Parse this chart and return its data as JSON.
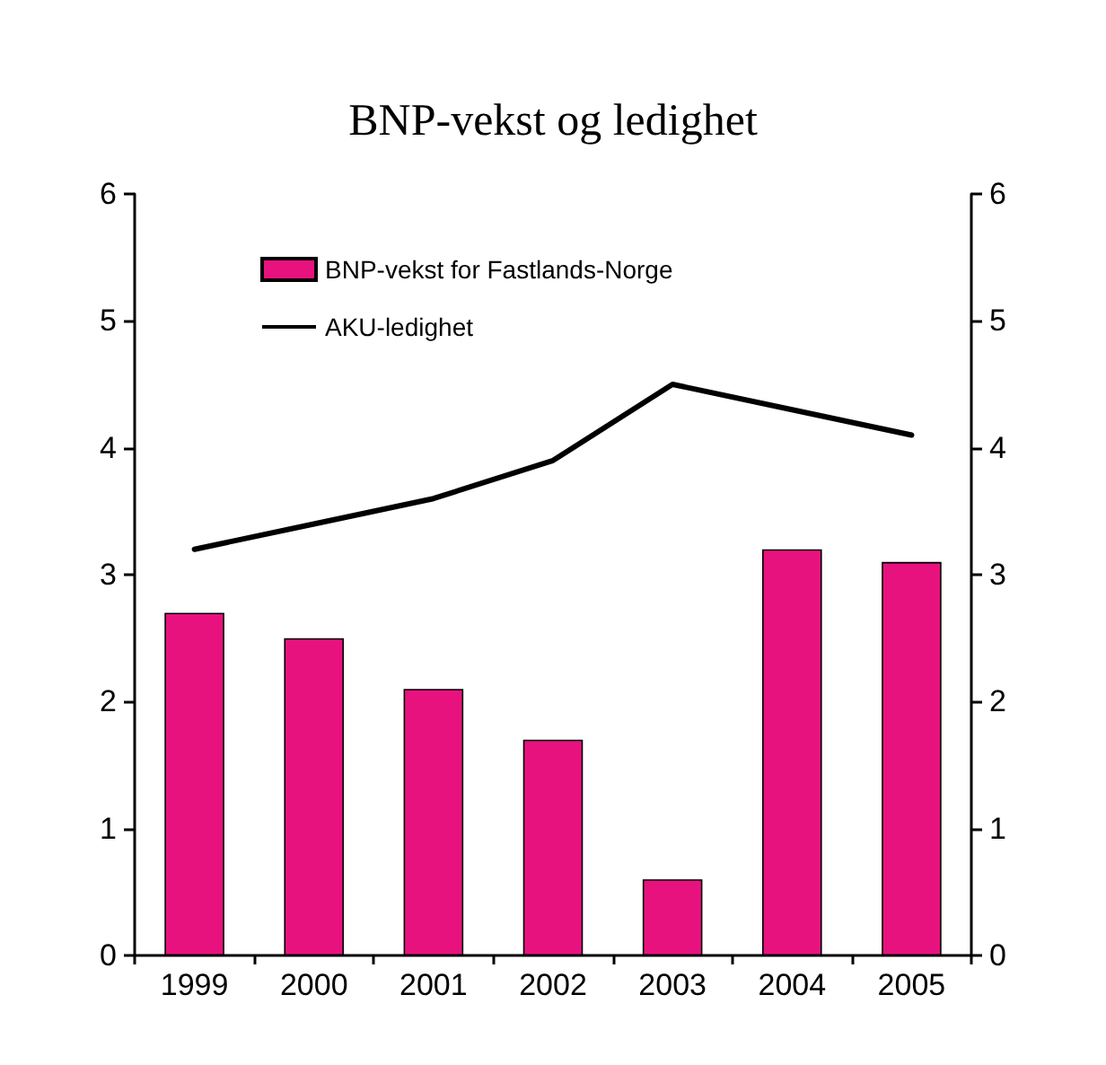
{
  "chart_data": {
    "type": "bar",
    "title": "BNP-vekst og ledighet",
    "categories": [
      "1999",
      "2000",
      "2001",
      "2002",
      "2003",
      "2004",
      "2005"
    ],
    "series": [
      {
        "name": "BNP-vekst for Fastlands-Norge",
        "color": "#e8127f",
        "values": [
          2.7,
          2.5,
          2.1,
          1.7,
          0.6,
          3.2,
          3.1
        ]
      },
      {
        "name": "AKU-ledighet",
        "type": "line",
        "color": "#000000",
        "values": [
          3.2,
          3.4,
          3.6,
          3.9,
          4.5,
          4.3,
          4.1
        ]
      }
    ],
    "ylim": [
      0,
      6
    ],
    "yticks": [
      0,
      1,
      2,
      3,
      4,
      5,
      6
    ],
    "y2lim": [
      0,
      6
    ],
    "y2ticks": [
      0,
      1,
      2,
      3,
      4,
      5,
      6
    ],
    "grid": false,
    "legend": "top left",
    "marker": "none",
    "line_style": "solid"
  }
}
